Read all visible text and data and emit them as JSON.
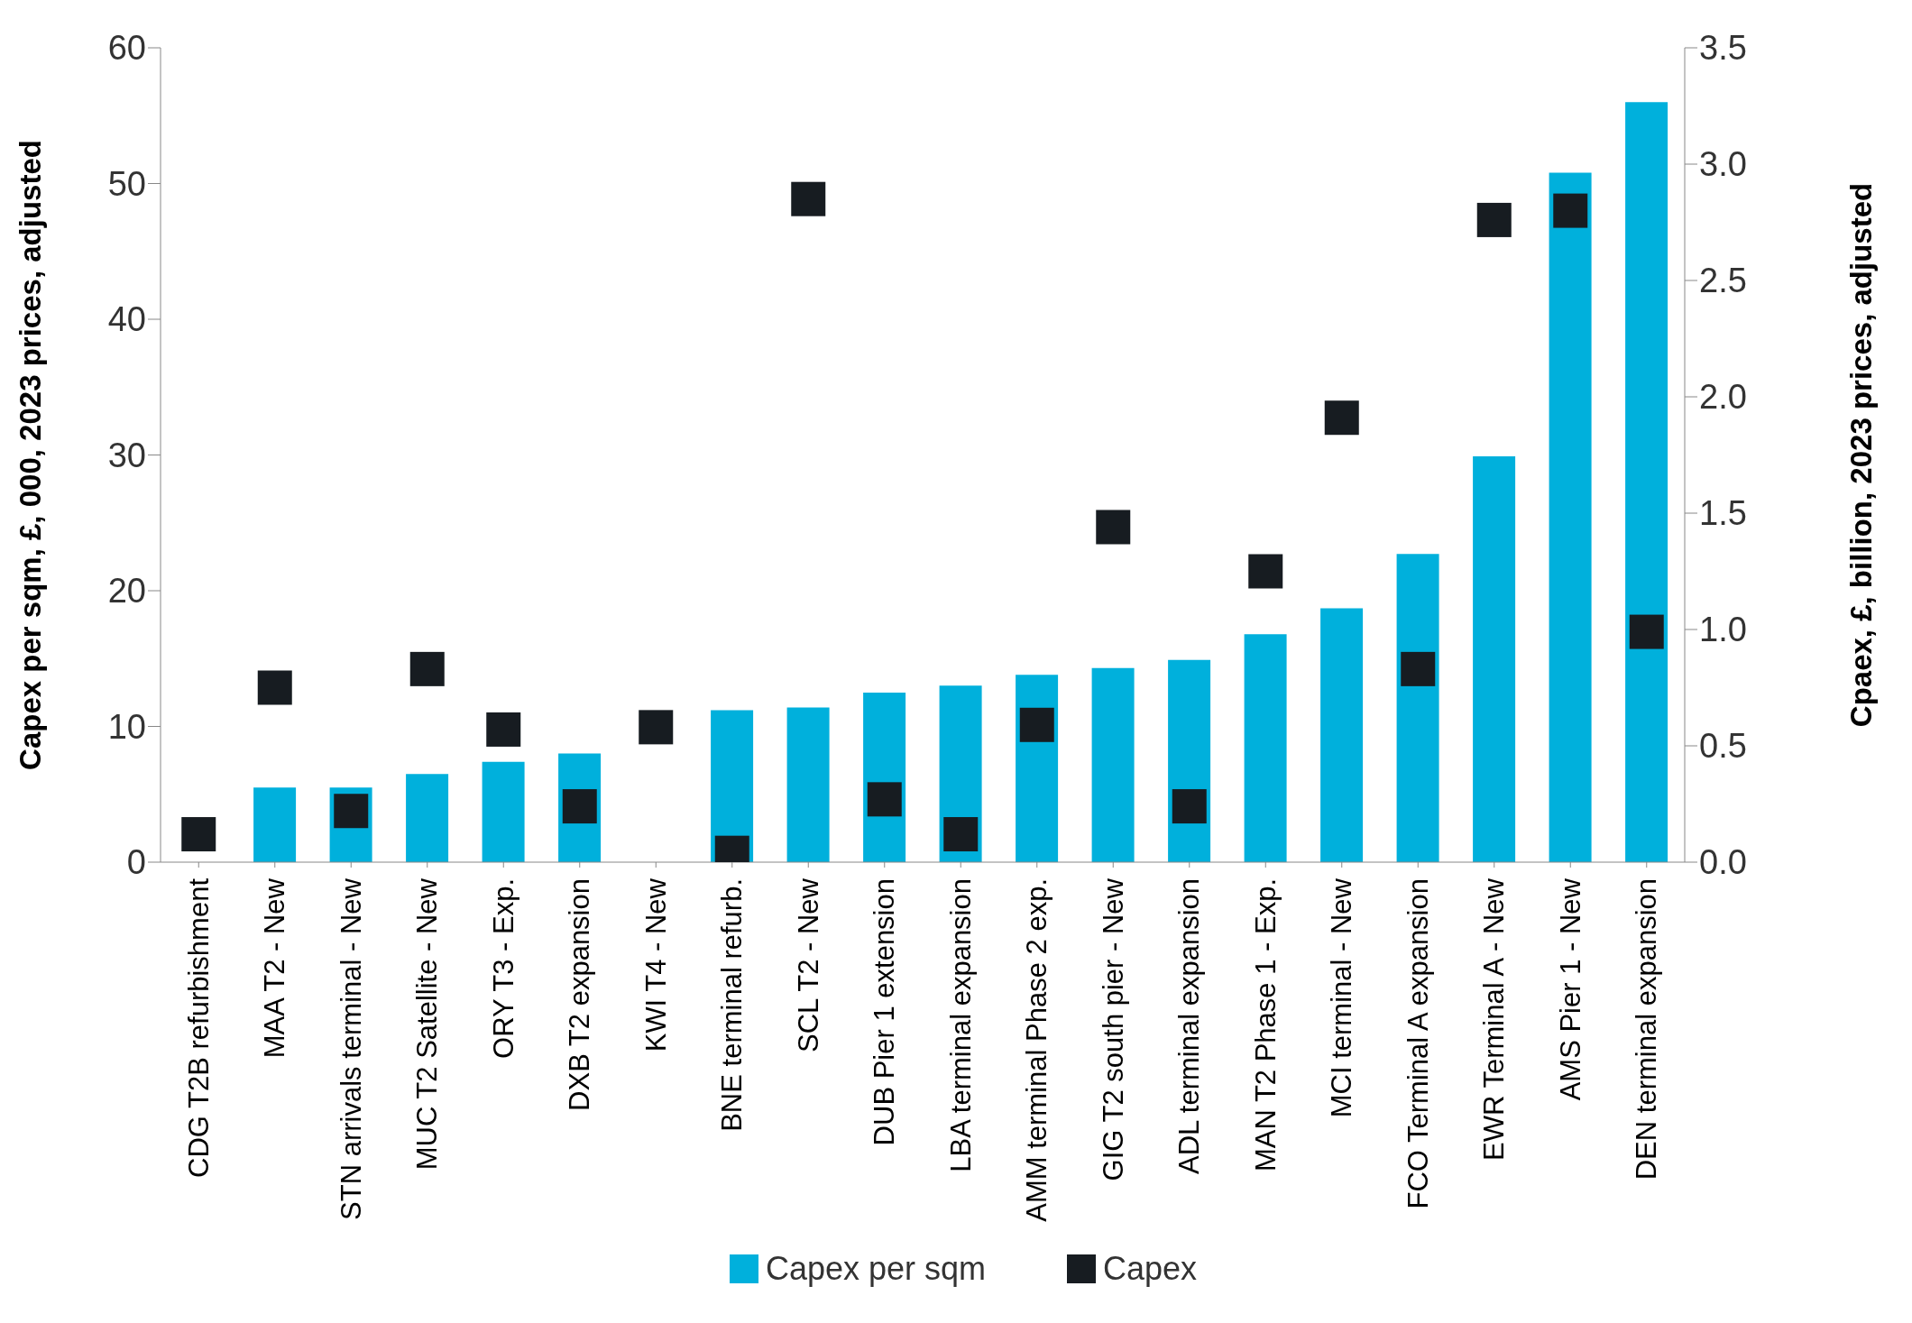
{
  "chart_data": {
    "type": "bar",
    "categories": [
      "CDG T2B  refurbishment",
      "MAA T2 - New",
      "STN arrivals terminal - New",
      "MUC T2 Satellite - New",
      "ORY T3 - Exp.",
      "DXB T2 expansion",
      "KWI T4 - New",
      "BNE terminal refurb.",
      "SCL T2 - New",
      "DUB Pier 1 extension",
      "LBA terminal expansion",
      "AMM terminal Phase 2 exp.",
      "GIG T2 south pier - New",
      "ADL terminal expansion",
      "MAN T2 Phase 1 - Exp.",
      "MCI terminal - New",
      "FCO Terminal A expansion",
      "EWR Terminal A - New",
      "AMS Pier 1 - New",
      "DEN terminal expansion"
    ],
    "series": [
      {
        "name": "Capex per sqm",
        "color": "#00b0dc",
        "values": [
          null,
          5.5,
          5.5,
          6.5,
          7.4,
          8.0,
          null,
          11.2,
          11.4,
          12.5,
          13.0,
          13.8,
          14.3,
          14.9,
          16.8,
          18.7,
          22.7,
          29.9,
          50.8,
          56.0
        ]
      },
      {
        "name": "Capex",
        "type": "scatter",
        "axis": "y2",
        "marker": "square",
        "color": "#171c21",
        "values": [
          0.12,
          0.75,
          0.22,
          0.83,
          0.57,
          0.24,
          0.58,
          0.04,
          2.85,
          0.27,
          0.12,
          0.59,
          1.44,
          0.24,
          1.25,
          1.91,
          0.83,
          2.76,
          2.8,
          0.99
        ]
      }
    ],
    "ylabel": "Capex per sqm, £, 000, 2023 prices, adjusted",
    "y2label": "Cpaex, £, billion, 2023 prices, adjusted",
    "ylim": [
      0,
      60
    ],
    "yticks": [
      0,
      10,
      20,
      30,
      40,
      50,
      60
    ],
    "y2lim": [
      0,
      3.5
    ],
    "y2ticks": [
      {
        "value": 0,
        "label": "0.0"
      },
      {
        "value": 0.5,
        "label": "0.5"
      },
      {
        "value": 1,
        "label": "1.0"
      },
      {
        "value": 1.5,
        "label": "1.5"
      },
      {
        "value": 2,
        "label": "2.0"
      },
      {
        "value": 2.5,
        "label": "2.5"
      },
      {
        "value": 3,
        "label": "3.0"
      },
      {
        "value": 3.5,
        "label": "3.5"
      }
    ],
    "grid": false,
    "legend": "bottom"
  }
}
